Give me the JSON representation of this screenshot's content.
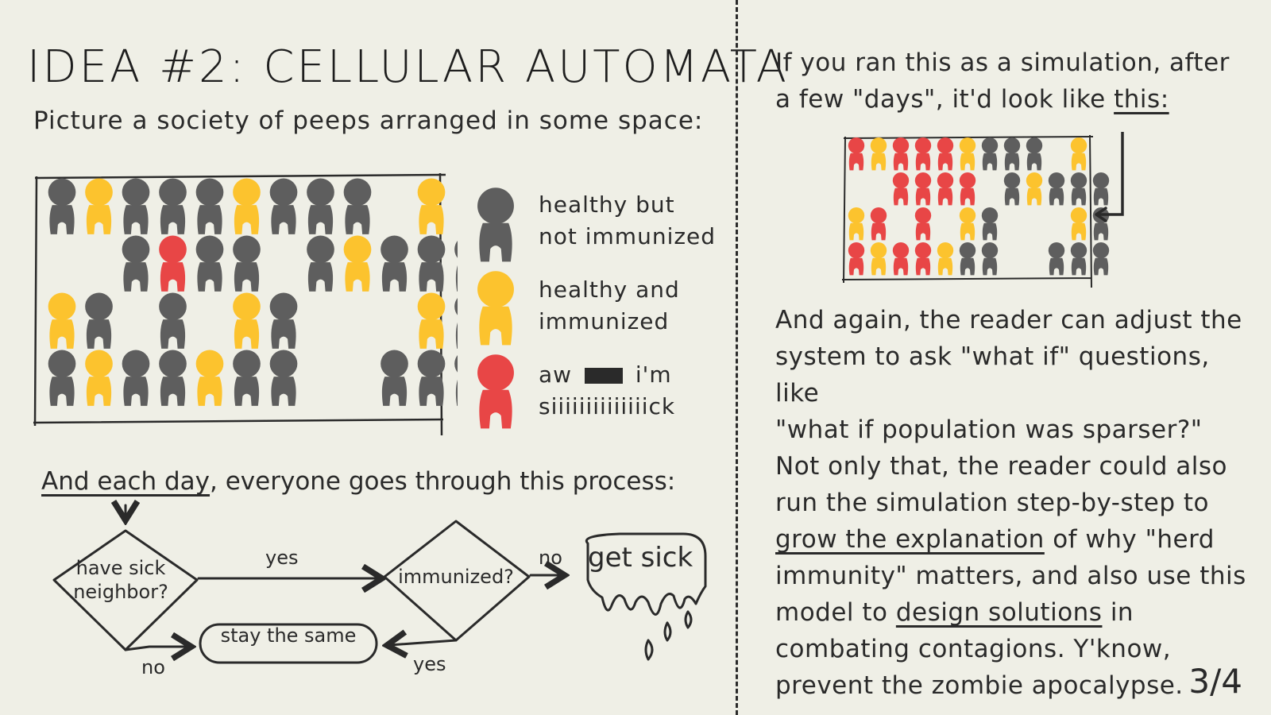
{
  "title": "IDEA #2: CELLULAR AUTOMATA",
  "subtitle": "Picture a society of peeps arranged in some space:",
  "colors": {
    "gray": "#5e5e5e",
    "yellow": "#fcc32e",
    "red": "#e84646",
    "background": "#efefe6",
    "ink": "#2a2a2a"
  },
  "legend": [
    {
      "color": "gray",
      "line1": "healthy but",
      "line2": "not immunized"
    },
    {
      "color": "yellow",
      "line1": "healthy and",
      "line2": "immunized"
    },
    {
      "color": "red",
      "line1_pre": "aw",
      "line1_post": "i'm",
      "line2": "siiiiiiiiiiiiiick"
    }
  ],
  "grid_initial": [
    "GYGGGYGGG.Y",
    "..GRGG.GYGGG",
    "YG.G.YG...YG",
    "GYGGYGG..GGG"
  ],
  "process": {
    "underlined": "And each day",
    "rest": ", everyone goes through this process:"
  },
  "flowchart": {
    "decision1_line1": "have sick",
    "decision1_line2": "neighbor?",
    "decision2": "immunized?",
    "yes1": "yes",
    "no1": "no",
    "no2": "no",
    "yes2": "yes",
    "stay": "stay the same",
    "sick": "get sick"
  },
  "right_top": {
    "line1": "If you ran this as a simulation, after",
    "line2_pre": "a few \"days\", it'd look like ",
    "line2_link": "this:"
  },
  "grid_after": [
    "RYRRRYGGG.Y",
    "..RRRR.GYGGG",
    "YR.R.YG...YG",
    "RYRRYGG..GGG"
  ],
  "right_body": {
    "p1": "And again, the reader can adjust the",
    "p2": "system to ask \"what if\" questions, like",
    "p3": "\"what if population was sparser?\"",
    "p4": "Not only that, the reader could also",
    "p5": "run the simulation step-by-step to",
    "p6_link": "grow the explanation",
    "p6_rest": " of why \"herd",
    "p7": "immunity\" matters, and also use this",
    "p8_pre": "model to ",
    "p8_link": "design solutions",
    "p8_rest": " in",
    "p9": "combating contagions. Y'know,",
    "p10": "prevent the zombie apocalypse."
  },
  "page_number": "3/4"
}
